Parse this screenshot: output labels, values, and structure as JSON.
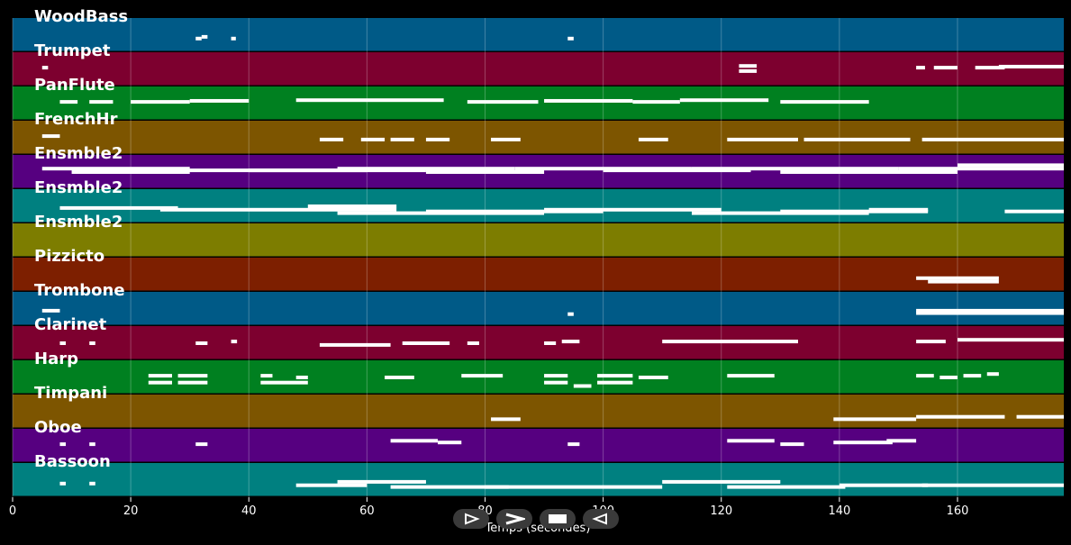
{
  "chart_data": {
    "type": "piano-roll",
    "xlabel": "Temps (secondes)",
    "xlim": [
      0,
      178
    ],
    "xticks": [
      0,
      20,
      40,
      60,
      80,
      100,
      120,
      140,
      160
    ],
    "grid": true,
    "tracks": [
      {
        "name": "WoodBass",
        "color": "#005a87",
        "notes": [
          [
            31,
            1,
            0.6
          ],
          [
            32,
            1,
            0.55
          ],
          [
            37,
            0.8,
            0.6
          ],
          [
            94,
            1,
            0.6
          ]
        ]
      },
      {
        "name": "Trumpet",
        "color": "#7d002f",
        "notes": [
          [
            5,
            1,
            0.45
          ],
          [
            123,
            3,
            0.4
          ],
          [
            123,
            3,
            0.55
          ],
          [
            153,
            1.5,
            0.45
          ],
          [
            156,
            4,
            0.45
          ],
          [
            163,
            5,
            0.45
          ],
          [
            167,
            11,
            0.42
          ]
        ]
      },
      {
        "name": "PanFlute",
        "color": "#008020",
        "notes": [
          [
            8,
            3,
            0.45
          ],
          [
            13,
            4,
            0.45
          ],
          [
            20,
            10,
            0.45
          ],
          [
            30,
            10,
            0.42
          ],
          [
            48,
            25,
            0.4
          ],
          [
            77,
            12,
            0.45
          ],
          [
            90,
            15,
            0.42
          ],
          [
            105,
            8,
            0.45
          ],
          [
            113,
            15,
            0.4
          ],
          [
            130,
            15,
            0.45
          ]
        ]
      },
      {
        "name": "FrenchHr",
        "color": "#7d5500",
        "notes": [
          [
            5,
            3,
            0.45
          ],
          [
            52,
            4,
            0.55
          ],
          [
            59,
            4,
            0.55
          ],
          [
            64,
            4,
            0.55
          ],
          [
            70,
            4,
            0.55
          ],
          [
            81,
            5,
            0.55
          ],
          [
            106,
            5,
            0.55
          ],
          [
            121,
            12,
            0.55
          ],
          [
            134,
            8,
            0.55
          ],
          [
            142,
            10,
            0.55
          ],
          [
            154,
            24,
            0.55
          ]
        ]
      },
      {
        "name": "Ensmble2",
        "color": "#560080",
        "notes": [
          [
            5,
            25,
            0.4
          ],
          [
            10,
            20,
            0.5
          ],
          [
            20,
            40,
            0.45
          ],
          [
            40,
            30,
            0.45
          ],
          [
            55,
            30,
            0.4
          ],
          [
            70,
            20,
            0.5
          ],
          [
            85,
            30,
            0.4
          ],
          [
            100,
            25,
            0.45
          ],
          [
            115,
            35,
            0.4
          ],
          [
            130,
            30,
            0.5
          ],
          [
            150,
            28,
            0.4
          ],
          [
            160,
            18,
            0.3
          ]
        ]
      },
      {
        "name": "Ensmble2",
        "color": "#008080",
        "notes": [
          [
            8,
            20,
            0.55
          ],
          [
            25,
            40,
            0.6
          ],
          [
            50,
            15,
            0.5
          ],
          [
            55,
            35,
            0.7
          ],
          [
            70,
            30,
            0.65
          ],
          [
            90,
            30,
            0.6
          ],
          [
            115,
            30,
            0.7
          ],
          [
            130,
            25,
            0.65
          ],
          [
            145,
            10,
            0.6
          ],
          [
            168,
            10,
            0.65
          ]
        ]
      },
      {
        "name": "Ensmble2",
        "color": "#7d7d00",
        "notes": []
      },
      {
        "name": "Pizzicto",
        "color": "#7d1f00",
        "notes": [
          [
            153,
            14,
            0.6
          ],
          [
            155,
            12,
            0.7
          ]
        ]
      },
      {
        "name": "Trombone",
        "color": "#005a87",
        "notes": [
          [
            94,
            1,
            0.65
          ],
          [
            5,
            3,
            0.55
          ],
          [
            153,
            25,
            0.55
          ],
          [
            153,
            25,
            0.62
          ]
        ]
      },
      {
        "name": "Clarinet",
        "color": "#7d002f",
        "notes": [
          [
            8,
            1,
            0.5
          ],
          [
            13,
            1,
            0.5
          ],
          [
            31,
            2,
            0.5
          ],
          [
            37,
            1,
            0.45
          ],
          [
            52,
            12,
            0.55
          ],
          [
            66,
            8,
            0.5
          ],
          [
            77,
            2,
            0.5
          ],
          [
            90,
            2,
            0.5
          ],
          [
            93,
            3,
            0.45
          ],
          [
            110,
            15,
            0.45
          ],
          [
            125,
            8,
            0.45
          ],
          [
            153,
            5,
            0.45
          ],
          [
            160,
            18,
            0.4
          ]
        ]
      },
      {
        "name": "Harp",
        "color": "#008020",
        "notes": [
          [
            23,
            4,
            0.45
          ],
          [
            23,
            4,
            0.65
          ],
          [
            28,
            5,
            0.45
          ],
          [
            28,
            5,
            0.65
          ],
          [
            42,
            2,
            0.45
          ],
          [
            42,
            8,
            0.65
          ],
          [
            48,
            2,
            0.5
          ],
          [
            63,
            5,
            0.5
          ],
          [
            76,
            7,
            0.45
          ],
          [
            90,
            4,
            0.45
          ],
          [
            90,
            4,
            0.65
          ],
          [
            95,
            3,
            0.75
          ],
          [
            99,
            6,
            0.45
          ],
          [
            99,
            6,
            0.65
          ],
          [
            106,
            5,
            0.5
          ],
          [
            121,
            8,
            0.45
          ],
          [
            153,
            3,
            0.45
          ],
          [
            157,
            3,
            0.5
          ],
          [
            161,
            3,
            0.45
          ],
          [
            165,
            2,
            0.4
          ]
        ]
      },
      {
        "name": "Timpani",
        "color": "#7d5500",
        "notes": [
          [
            81,
            5,
            0.72
          ],
          [
            139,
            14,
            0.72
          ],
          [
            153,
            15,
            0.65
          ],
          [
            170,
            8,
            0.65
          ]
        ]
      },
      {
        "name": "Oboe",
        "color": "#560080",
        "notes": [
          [
            8,
            1,
            0.45
          ],
          [
            13,
            1,
            0.45
          ],
          [
            31,
            2,
            0.45
          ],
          [
            64,
            8,
            0.35
          ],
          [
            72,
            4,
            0.4
          ],
          [
            94,
            2,
            0.45
          ],
          [
            121,
            8,
            0.35
          ],
          [
            130,
            4,
            0.45
          ],
          [
            139,
            10,
            0.4
          ],
          [
            148,
            5,
            0.35
          ]
        ]
      },
      {
        "name": "Bassoon",
        "color": "#008080",
        "notes": [
          [
            8,
            1,
            0.6
          ],
          [
            13,
            1,
            0.6
          ],
          [
            48,
            12,
            0.65
          ],
          [
            55,
            15,
            0.55
          ],
          [
            64,
            20,
            0.7
          ],
          [
            80,
            30,
            0.7
          ],
          [
            110,
            20,
            0.55
          ],
          [
            121,
            20,
            0.7
          ],
          [
            140,
            15,
            0.65
          ],
          [
            154,
            24,
            0.65
          ]
        ]
      }
    ]
  },
  "controls": [
    {
      "name": "play-button",
      "glyph": "▷"
    },
    {
      "name": "forward-button",
      "glyph": ">"
    },
    {
      "name": "stop-button",
      "glyph": "■"
    },
    {
      "name": "back-button",
      "glyph": "◁"
    }
  ]
}
